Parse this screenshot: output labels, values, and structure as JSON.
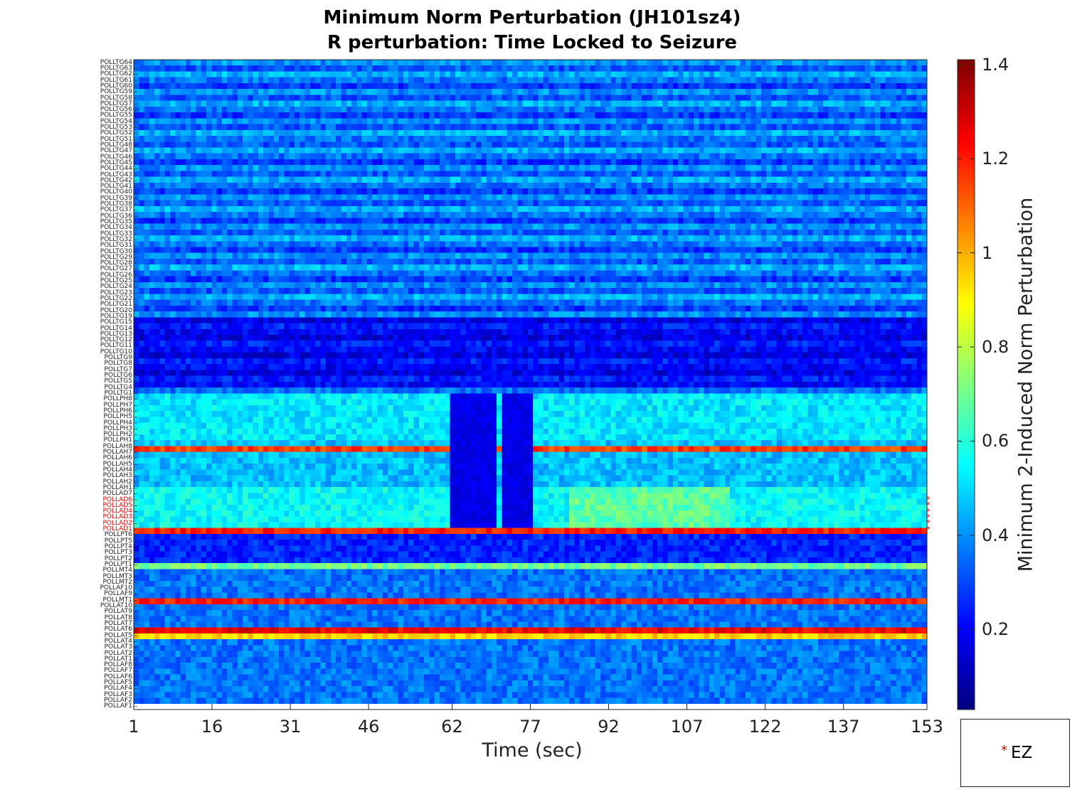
{
  "chart_data": {
    "type": "heatmap",
    "title": "Minimum Norm Perturbation (JH101sz4)",
    "subtitle": "R perturbation:  Time Locked to Seizure",
    "xlabel": "Time (sec)",
    "colorbar_label": "Minimum 2-Induced Norm Perturbation",
    "x_ticks": [
      "1",
      "16",
      "31",
      "46",
      "62",
      "77",
      "92",
      "107",
      "122",
      "137",
      "153"
    ],
    "x_range": [
      1,
      153
    ],
    "colorbar_ticks": [
      "1.4",
      "1.2",
      "1",
      "0.8",
      "0.6",
      "0.4",
      "0.2"
    ],
    "colorbar_range": [
      0.03,
      1.41
    ],
    "colormap": "jet",
    "channels_top_to_bottom": [
      "POLLTG64",
      "POLLTG63",
      "POLLTG62",
      "POLLTG61",
      "POLLTG60",
      "POLLTG59",
      "POLLTG58",
      "POLLTG57",
      "POLLTG56",
      "POLLTG55",
      "POLLTG54",
      "POLLTG53",
      "POLLTG52",
      "POLLTG51",
      "POLLTG48",
      "POLLTG47",
      "POLLTG46",
      "POLLTG45",
      "POLLTG44",
      "POLLTG43",
      "POLLTG42",
      "POLLTG41",
      "POLLTG40",
      "POLLTG39",
      "POLLTG38",
      "POLLTG37",
      "POLLTG36",
      "POLLTG35",
      "POLLTG34",
      "POLLTG33",
      "POLLTG32",
      "POLLTG31",
      "POLLTG30",
      "POLLTG29",
      "POLLTG28",
      "POLLTG27",
      "POLLTG26",
      "POLLTG25",
      "POLLTG24",
      "POLLTG23",
      "POLLTG22",
      "POLLTG21",
      "POLLTG20",
      "POLLTG19",
      "POLLTG15",
      "POLLTG14",
      "POLLTG13",
      "POLLTG12",
      "POLLTG11",
      "POLLTG10",
      "POLLTG9",
      "POLLTG8",
      "POLLTG7",
      "POLLTG6",
      "POLLTG5",
      "POLLTG4",
      "POLLTG1",
      "POLLPH8",
      "POLLPH7",
      "POLLPH6",
      "POLLPH5",
      "POLLPH4",
      "POLLPH3",
      "POLLPH2",
      "POLLPH1",
      "POLLAH8",
      "POLLAH7",
      "POLLAH6",
      "POLLAH5",
      "POLLAH4",
      "POLLAH3",
      "POLLAH2",
      "POLLAH1",
      "POLLAD7",
      "POLLAD6",
      "POLLAD5",
      "POLLAD4",
      "POLLAD3",
      "POLLAD2",
      "POLLAD1",
      "POLLPT6",
      "POLLPT5",
      "POLLPT4",
      "POLLPT3",
      "POLLPT2",
      "POLLPT1",
      "POLLMT4",
      "POLLMT3",
      "POLLMT2",
      "POLLAF10",
      "POLLAF9",
      "POLLMT1",
      "POLLAT10",
      "POLLAT9",
      "POLLAT8",
      "POLLAT7",
      "POLLAT6",
      "POLLAT5",
      "POLLAT4",
      "POLLAT3",
      "POLLAT2",
      "POLLAT1",
      "POLLAF8",
      "POLLAF7",
      "POLLAF6",
      "POLLAF5",
      "POLLAF4",
      "POLLAF3",
      "POLLAF2",
      "POLLAF1"
    ],
    "ez_channels": [
      "POLLAD6",
      "POLLAD5",
      "POLLAD4",
      "POLLAD3",
      "POLLAD2",
      "POLLAD1"
    ],
    "notable_rows": {
      "POLLAH7": 1.15,
      "POLLPT6": 1.2,
      "POLLAT10": 1.2,
      "POLLAT5": 1.25,
      "POLLAT4": 0.95,
      "POLLMT4": 0.7
    },
    "seizure_low_window_sec": [
      62,
      77
    ],
    "legend": {
      "marker": "*",
      "label": "EZ",
      "color": "#e00000"
    }
  },
  "colors": {
    "ez_label": "#e00000",
    "label": "#222222"
  }
}
